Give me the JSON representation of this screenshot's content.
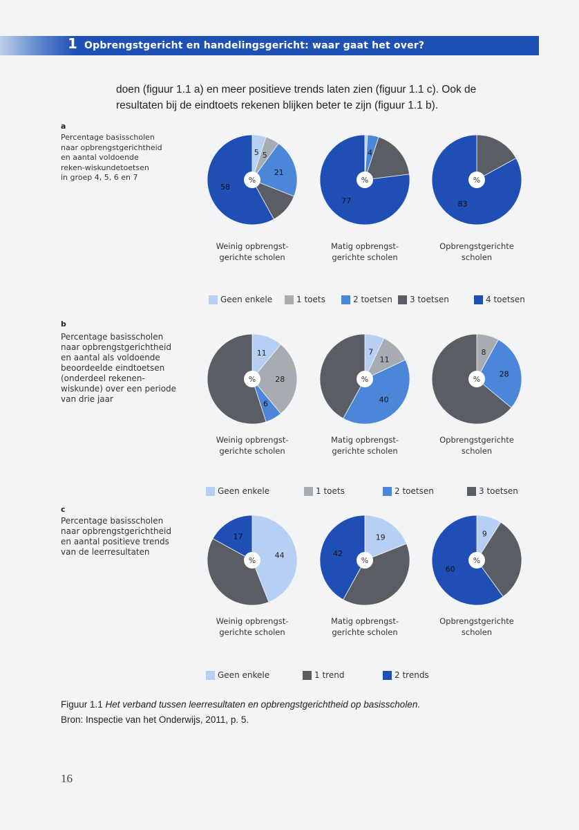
{
  "header": {
    "number": "1",
    "title": "Opbrengstgericht en handelingsgericht: waar gaat het over?"
  },
  "intro": {
    "line1": "doen (figuur 1.1 a) en meer positieve trends laten zien (figuur 1.1 c). Ook de",
    "line2": "resultaten bij de eindtoets rekenen blijken beter te zijn (figuur 1.1 b)."
  },
  "colors": {
    "geen_enkele": "#b7cff2",
    "een": "#a7acb3",
    "twee": "#4c86d9",
    "drie": "#5a5e64",
    "vier": "#1f4fb5"
  },
  "center_symbol": "%",
  "categories": [
    "Weinig opbrengst-\ngerichte scholen",
    "Matig opbrengst-\ngerichte scholen",
    "Opbrengstgerichte\nscholen"
  ],
  "category_lines": [
    [
      "Weinig opbrengst-",
      "gerichte scholen"
    ],
    [
      "Matig opbrengst-",
      "gerichte scholen"
    ],
    [
      "Opbrengstgerichte",
      "scholen"
    ]
  ],
  "chart_data": [
    {
      "type": "pie",
      "panel": "a",
      "title": "Percentage basisscholen naar opbrengstgerichtheid en aantal voldoende reken-wiskundetoetsen in groep 4, 5, 6 en 7",
      "title_lines": [
        "Percentage basisscholen",
        "naar opbrengstgerichtheid",
        "en aantal voldoende",
        "reken-wiskundetoetsen",
        "in groep 4, 5, 6 en 7"
      ],
      "legend": [
        {
          "label": "Geen enkele",
          "color": "#b7cff2"
        },
        {
          "label": "1 toets",
          "color": "#a7acb3"
        },
        {
          "label": "2 toetsen",
          "color": "#4c86d9"
        },
        {
          "label": "3 toetsen",
          "color": "#5a5e64"
        },
        {
          "label": "4 toetsen",
          "color": "#1f4fb5"
        }
      ],
      "pies": [
        {
          "category": "Weinig opbrengstgerichte scholen",
          "slices": [
            {
              "series": "Geen enkele",
              "value": 5,
              "label": "5"
            },
            {
              "series": "1 toets",
              "value": 5,
              "label": "5"
            },
            {
              "series": "2 toetsen",
              "value": 21,
              "label": "21"
            },
            {
              "series": "3 toetsen",
              "value": 11,
              "label": ""
            },
            {
              "series": "4 toetsen",
              "value": 58,
              "label": "58"
            }
          ]
        },
        {
          "category": "Matig opbrengstgerichte scholen",
          "slices": [
            {
              "series": "Geen enkele",
              "value": 1,
              "label": ""
            },
            {
              "series": "2 toetsen",
              "value": 4,
              "label": "4"
            },
            {
              "series": "3 toetsen",
              "value": 18,
              "label": ""
            },
            {
              "series": "4 toetsen",
              "value": 77,
              "label": "77"
            }
          ]
        },
        {
          "category": "Opbrengstgerichte scholen",
          "slices": [
            {
              "series": "3 toetsen",
              "value": 17,
              "label": ""
            },
            {
              "series": "4 toetsen",
              "value": 83,
              "label": "83"
            }
          ]
        }
      ]
    },
    {
      "type": "pie",
      "panel": "b",
      "title": "Percentage basisscholen naar opbrengstgerichtheid en aantal als voldoende beoordeelde eindtoetsen (onderdeel rekenen-wiskunde) over een periode van drie jaar",
      "title_lines": [
        "Percentage basisscholen",
        "naar opbrengstgerichtheid",
        "en aantal als voldoende",
        "beoordeelde eindtoetsen",
        "(onderdeel rekenen-",
        "wiskunde) over een periode",
        "van drie jaar"
      ],
      "legend": [
        {
          "label": "Geen enkele",
          "color": "#b7cff2"
        },
        {
          "label": "1 toets",
          "color": "#a7acb3"
        },
        {
          "label": "2 toetsen",
          "color": "#4c86d9"
        },
        {
          "label": "3 toetsen",
          "color": "#5a5e64"
        }
      ],
      "pies": [
        {
          "category": "Weinig opbrengstgerichte scholen",
          "slices": [
            {
              "series": "Geen enkele",
              "value": 11,
              "label": "11"
            },
            {
              "series": "1 toets",
              "value": 28,
              "label": "28"
            },
            {
              "series": "2 toetsen",
              "value": 6,
              "label": "6"
            },
            {
              "series": "3 toetsen",
              "value": 55,
              "label": ""
            }
          ]
        },
        {
          "category": "Matig opbrengstgerichte scholen",
          "slices": [
            {
              "series": "Geen enkele",
              "value": 7,
              "label": "7"
            },
            {
              "series": "1 toets",
              "value": 11,
              "label": "11"
            },
            {
              "series": "2 toetsen",
              "value": 40,
              "label": "40"
            },
            {
              "series": "3 toetsen",
              "value": 42,
              "label": ""
            }
          ]
        },
        {
          "category": "Opbrengstgerichte scholen",
          "slices": [
            {
              "series": "1 toets",
              "value": 8,
              "label": "8"
            },
            {
              "series": "2 toetsen",
              "value": 28,
              "label": "28"
            },
            {
              "series": "3 toetsen",
              "value": 64,
              "label": ""
            }
          ]
        }
      ]
    },
    {
      "type": "pie",
      "panel": "c",
      "title": "Percentage basisscholen naar opbrengstgerichtheid en aantal positieve trends van de leerresultaten",
      "title_lines": [
        "Percentage basisscholen",
        "naar opbrengstgerichtheid",
        "en aantal positieve trends",
        "van de leerresultaten"
      ],
      "legend": [
        {
          "label": "Geen enkele",
          "color": "#b7cff2"
        },
        {
          "label": "1 trend",
          "color": "#5a5e64"
        },
        {
          "label": "2 trends",
          "color": "#1f4fb5"
        }
      ],
      "pies": [
        {
          "category": "Weinig opbrengstgerichte scholen",
          "slices": [
            {
              "series": "Geen enkele",
              "value": 44,
              "label": "44"
            },
            {
              "series": "1 trend",
              "value": 39,
              "label": ""
            },
            {
              "series": "2 trends",
              "value": 17,
              "label": "17"
            }
          ]
        },
        {
          "category": "Matig opbrengstgerichte scholen",
          "slices": [
            {
              "series": "Geen enkele",
              "value": 19,
              "label": "19"
            },
            {
              "series": "1 trend",
              "value": 39,
              "label": ""
            },
            {
              "series": "2 trends",
              "value": 42,
              "label": "42"
            }
          ]
        },
        {
          "category": "Opbrengstgerichte scholen",
          "slices": [
            {
              "series": "Geen enkele",
              "value": 9,
              "label": "9"
            },
            {
              "series": "1 trend",
              "value": 31,
              "label": ""
            },
            {
              "series": "2 trends",
              "value": 60,
              "label": "60"
            }
          ]
        }
      ]
    }
  ],
  "caption": {
    "lead": "Figuur 1.1 ",
    "italic": "Het verband tussen leerresultaten en opbrengstgerichtheid op basisscholen.",
    "source": "Bron: Inspectie van het Onderwijs, 2011, p. 5."
  },
  "page_number": "16"
}
